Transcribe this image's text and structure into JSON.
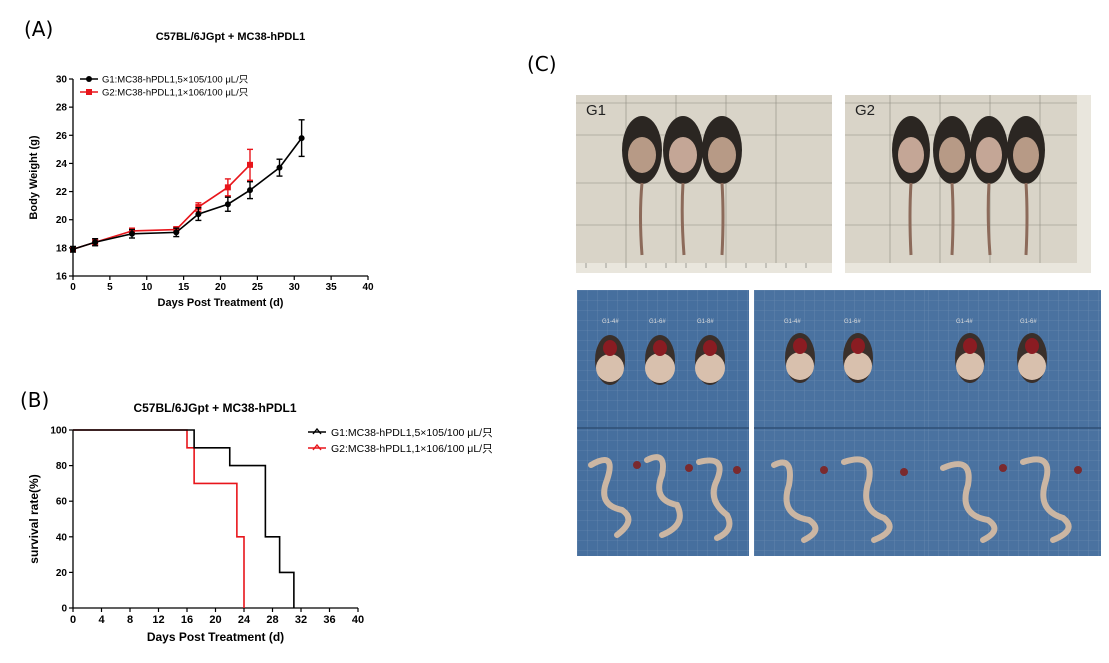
{
  "panels": {
    "a_label": "(A)",
    "b_label": "(B)",
    "c_label": "(C)"
  },
  "chart_data": [
    {
      "type": "line",
      "title": "C57BL/6JGpt + MC38-hPDL1",
      "xlabel": "Days Post Treatment (d)",
      "ylabel": "Body Weight (g)",
      "xlim": [
        0,
        40
      ],
      "ylim": [
        16,
        30
      ],
      "xticks": [
        0,
        5,
        10,
        15,
        20,
        25,
        30,
        35,
        40
      ],
      "yticks": [
        16,
        18,
        20,
        22,
        24,
        26,
        28,
        30
      ],
      "error_bars": true,
      "legend_position": "top-left",
      "series": [
        {
          "name": "G1:MC38-hPDL1,5×105/100 μL/只",
          "color": "#000000",
          "marker": "circle",
          "x": [
            0,
            3,
            8,
            14,
            17,
            21,
            24,
            28,
            31
          ],
          "y": [
            17.9,
            18.4,
            19.0,
            19.1,
            20.4,
            21.1,
            22.1,
            23.7,
            25.8
          ],
          "err": [
            0.2,
            0.25,
            0.3,
            0.3,
            0.45,
            0.5,
            0.6,
            0.6,
            1.3
          ]
        },
        {
          "name": "G2:MC38-hPDL1,1×106/100 μL/只",
          "color": "#e8151b",
          "marker": "square",
          "x": [
            0,
            3,
            8,
            14,
            17,
            21,
            24
          ],
          "y": [
            17.9,
            18.4,
            19.2,
            19.3,
            20.9,
            22.3,
            23.9
          ],
          "err": [
            0.15,
            0.2,
            0.2,
            0.2,
            0.3,
            0.6,
            1.1
          ]
        }
      ]
    },
    {
      "type": "line",
      "title": "C57BL/6JGpt + MC38-hPDL1",
      "xlabel": "Days Post Treatment (d)",
      "ylabel": "survival rate(%)",
      "xlim": [
        0,
        40
      ],
      "ylim": [
        0,
        100
      ],
      "xticks": [
        0,
        4,
        8,
        12,
        16,
        20,
        24,
        28,
        32,
        36,
        40
      ],
      "yticks": [
        0,
        20,
        40,
        60,
        80,
        100
      ],
      "step": true,
      "legend_position": "top-right",
      "series": [
        {
          "name": "G1:MC38-hPDL1,5×105/100 μL/只",
          "color": "#000000",
          "x": [
            0,
            17,
            22,
            27,
            29,
            31
          ],
          "y": [
            100,
            90,
            80,
            40,
            20,
            0
          ]
        },
        {
          "name": "G2:MC38-hPDL1,1×106/100 μL/只",
          "color": "#e8151b",
          "x": [
            0,
            16,
            17,
            23,
            24
          ],
          "y": [
            100,
            90,
            70,
            40,
            0
          ]
        }
      ]
    }
  ],
  "photos": {
    "g1_label": "G1",
    "g2_label": "G2",
    "bottom_labels": [
      "G1-4#",
      "G1-6#",
      "G1-8#",
      "G1-4#",
      "G1-6#",
      "G1-4#",
      "G1-6#"
    ]
  }
}
